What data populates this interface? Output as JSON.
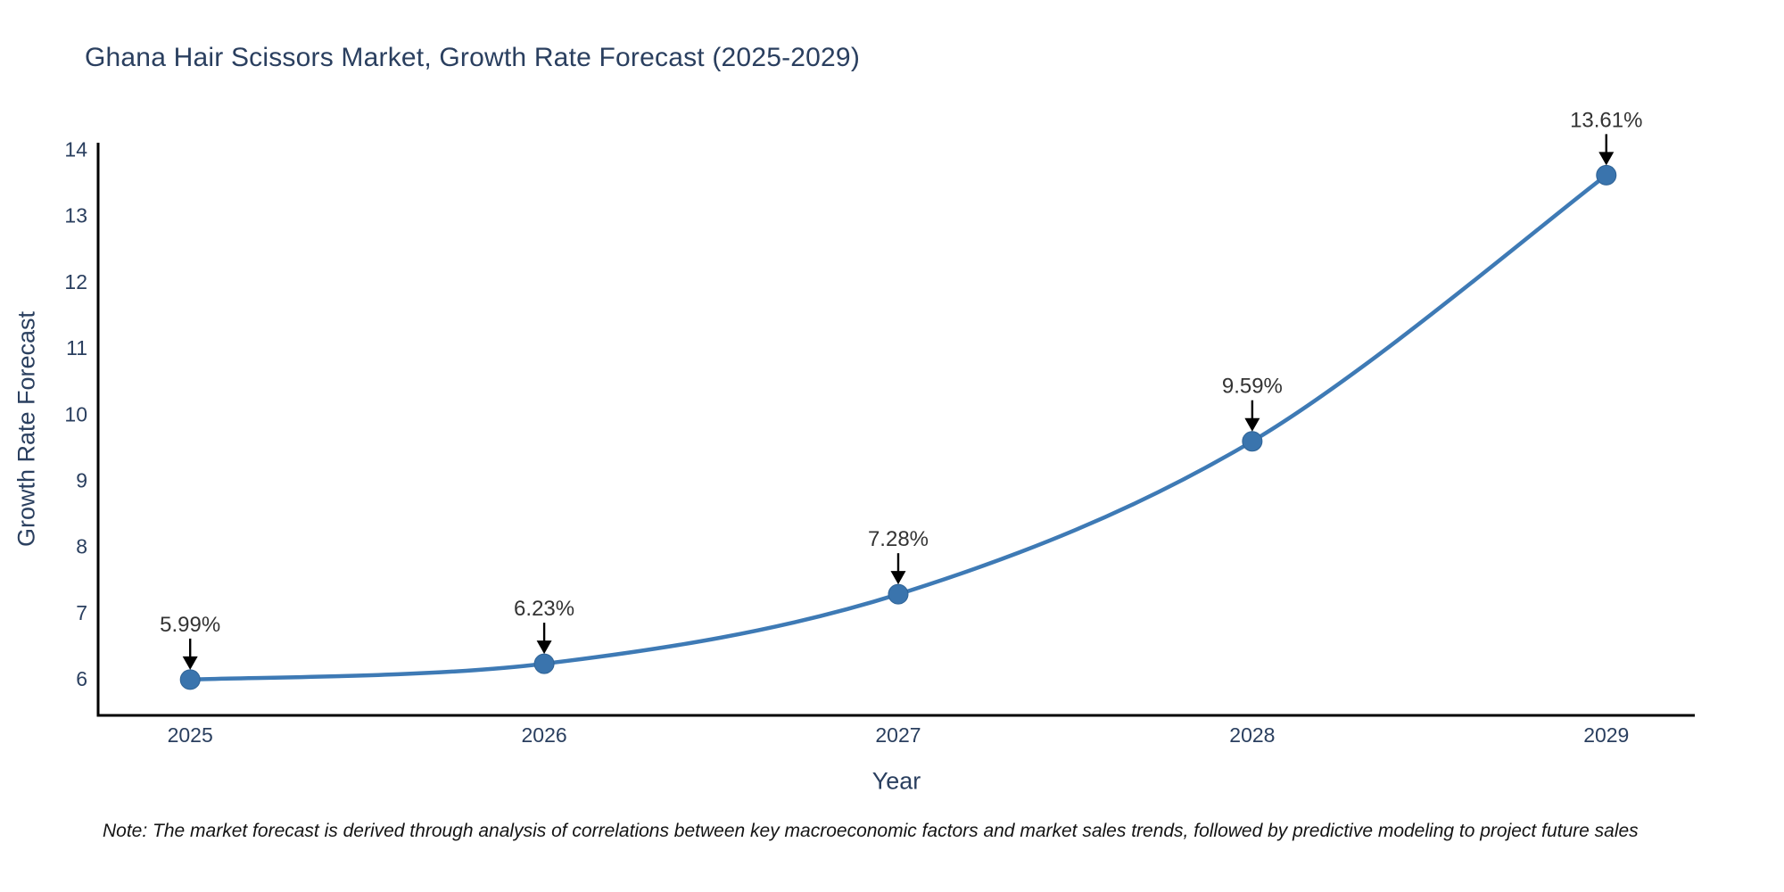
{
  "chart": {
    "title": "Ghana Hair Scissors Market, Growth Rate Forecast (2025-2029)",
    "xlabel": "Year",
    "ylabel": "Growth Rate Forecast",
    "note": "Note: The market forecast is derived through analysis of correlations between key macroeconomic factors and market sales trends, followed by predictive modeling to project future sales"
  },
  "chart_data": {
    "type": "line",
    "title": "Ghana Hair Scissors Market, Growth Rate Forecast (2025-2029)",
    "xlabel": "Year",
    "ylabel": "Growth Rate Forecast",
    "x": [
      2025,
      2026,
      2027,
      2028,
      2029
    ],
    "values": [
      5.99,
      6.23,
      7.28,
      9.59,
      13.61
    ],
    "point_labels": [
      "5.99%",
      "6.23%",
      "7.28%",
      "9.59%",
      "13.61%"
    ],
    "xticks": [
      2025,
      2026,
      2027,
      2028,
      2029
    ],
    "yticks": [
      6,
      7,
      8,
      9,
      10,
      11,
      12,
      13,
      14
    ],
    "xlim": [
      2024.74,
      2029.25
    ],
    "ylim": [
      5.45,
      14.1
    ],
    "grid": false,
    "legend": "none",
    "line_color": "#3e7ab5",
    "marker_color": "#3a74ad",
    "marker_edge_color": "#2f6396",
    "axis_color": "#000000",
    "tick_label_color": "#2a3f5f",
    "annotation_color": "#333333",
    "annotation_arrow_color": "#000000"
  }
}
